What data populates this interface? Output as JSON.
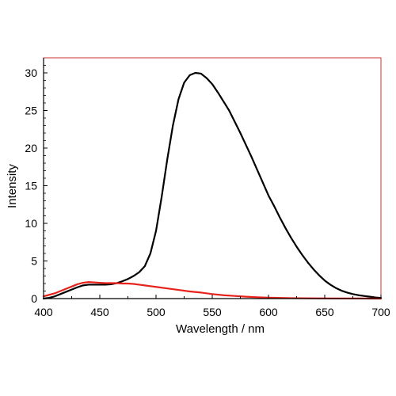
{
  "chart_data": {
    "type": "line",
    "title": "",
    "xlabel": "Wavelength / nm",
    "ylabel": "Intensity",
    "xlim": [
      400,
      700
    ],
    "ylim": [
      0,
      32
    ],
    "xticks": [
      400,
      450,
      500,
      550,
      600,
      650,
      700
    ],
    "yticks": [
      0,
      5,
      10,
      15,
      20,
      25,
      30
    ],
    "grid": false,
    "legend": "none",
    "colors": {
      "frame": "#cc3333",
      "axis": "#000000"
    },
    "series": [
      {
        "color": "#000000",
        "x": [
          400,
          405,
          410,
          415,
          420,
          425,
          430,
          435,
          440,
          445,
          450,
          455,
          460,
          465,
          470,
          475,
          480,
          485,
          490,
          495,
          500,
          505,
          510,
          515,
          520,
          525,
          530,
          535,
          540,
          545,
          550,
          555,
          560,
          565,
          570,
          575,
          580,
          585,
          590,
          595,
          600,
          605,
          610,
          615,
          620,
          625,
          630,
          635,
          640,
          645,
          650,
          655,
          660,
          665,
          670,
          675,
          680,
          685,
          690,
          695,
          700
        ],
        "y": [
          0.0,
          0.1,
          0.3,
          0.6,
          0.9,
          1.2,
          1.5,
          1.75,
          1.85,
          1.85,
          1.85,
          1.85,
          1.9,
          2.05,
          2.3,
          2.6,
          3.0,
          3.5,
          4.3,
          6.0,
          9.0,
          13.5,
          18.5,
          23.0,
          26.5,
          28.7,
          29.7,
          30.0,
          29.9,
          29.3,
          28.5,
          27.4,
          26.2,
          25.0,
          23.5,
          22.0,
          20.4,
          18.8,
          17.1,
          15.4,
          13.7,
          12.3,
          10.8,
          9.4,
          8.1,
          6.9,
          5.8,
          4.8,
          3.9,
          3.1,
          2.4,
          1.85,
          1.4,
          1.05,
          0.8,
          0.6,
          0.45,
          0.35,
          0.25,
          0.15,
          0.08
        ]
      },
      {
        "color": "#e8221a",
        "x": [
          400,
          405,
          410,
          415,
          420,
          425,
          430,
          435,
          440,
          445,
          450,
          455,
          460,
          465,
          470,
          475,
          480,
          485,
          490,
          495,
          500,
          510,
          520,
          530,
          540,
          550,
          560,
          570,
          580,
          590,
          600,
          620,
          640,
          660,
          680,
          700
        ],
        "y": [
          0.3,
          0.5,
          0.7,
          1.0,
          1.3,
          1.6,
          1.9,
          2.1,
          2.2,
          2.15,
          2.1,
          2.05,
          2.05,
          2.05,
          2.0,
          2.0,
          1.95,
          1.85,
          1.75,
          1.65,
          1.55,
          1.35,
          1.15,
          0.95,
          0.8,
          0.6,
          0.45,
          0.35,
          0.25,
          0.18,
          0.12,
          0.06,
          0.03,
          0.02,
          0.01,
          0.0
        ]
      }
    ]
  }
}
